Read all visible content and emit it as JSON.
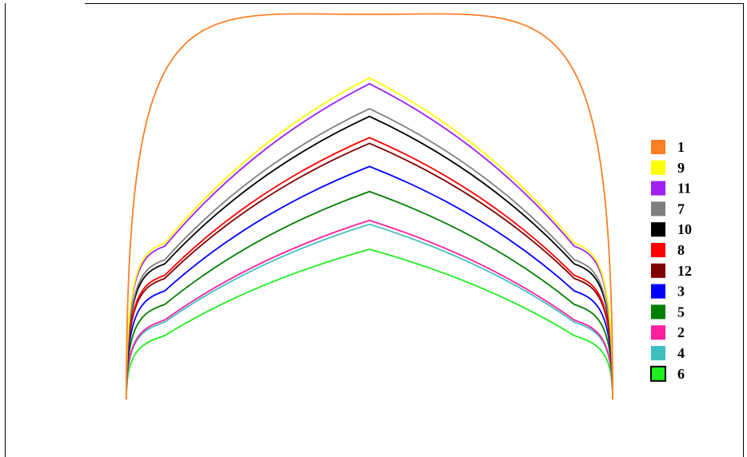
{
  "chart_data": {
    "type": "line",
    "title": "",
    "xlabel": "",
    "ylabel": "",
    "axes_visible": false,
    "grid": false,
    "legend_placement": "right",
    "x": [
      0,
      0.5,
      1
    ],
    "series": [
      {
        "name": "1",
        "color": "#FF7F27",
        "shape": "arch",
        "apex": 1.0,
        "border": "none"
      },
      {
        "name": "9",
        "color": "#FFFF00",
        "shape": "peak",
        "apex": 0.835,
        "border": "none"
      },
      {
        "name": "11",
        "color": "#A020F0",
        "shape": "peak",
        "apex": 0.82,
        "border": "none"
      },
      {
        "name": "7",
        "color": "#7F7F7F",
        "shape": "peak",
        "apex": 0.755,
        "border": "none"
      },
      {
        "name": "10",
        "color": "#000000",
        "shape": "peak",
        "apex": 0.735,
        "border": "none"
      },
      {
        "name": "8",
        "color": "#FF0000",
        "shape": "peak",
        "apex": 0.68,
        "border": "none"
      },
      {
        "name": "12",
        "color": "#7F0000",
        "shape": "peak",
        "apex": 0.665,
        "border": "none"
      },
      {
        "name": "3",
        "color": "#0000FF",
        "shape": "peak",
        "apex": 0.605,
        "border": "none"
      },
      {
        "name": "5",
        "color": "#007F00",
        "shape": "peak",
        "apex": 0.54,
        "border": "none"
      },
      {
        "name": "2",
        "color": "#FF1F9F",
        "shape": "peak",
        "apex": 0.465,
        "border": "none"
      },
      {
        "name": "4",
        "color": "#3FBFBF",
        "shape": "peak",
        "apex": 0.455,
        "border": "none"
      },
      {
        "name": "6",
        "color": "#1FEF1F",
        "shape": "peak",
        "apex": 0.39,
        "border": "#000000"
      }
    ]
  }
}
